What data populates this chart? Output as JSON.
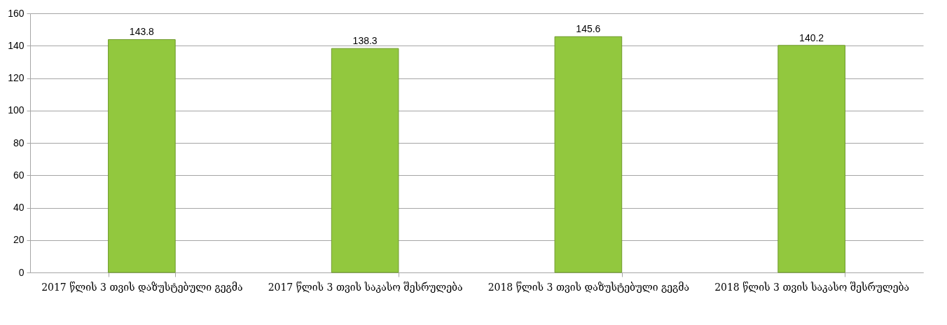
{
  "chart_data": {
    "type": "bar",
    "categories": [
      "2017 წლის 3 თვის\nდაზუსტებული გეგმა",
      "2017 წლის 3 თვის საკასო\nშესრულება",
      "2018 წლის 3 თვის\nდაზუსტებული გეგმა",
      "2018 წლის 3 თვის საკასო\nშესრულება"
    ],
    "values": [
      143.8,
      138.3,
      145.6,
      140.2
    ],
    "color": "#92c83e",
    "ylim": [
      0,
      160
    ],
    "yticks": [
      0,
      20,
      40,
      60,
      80,
      100,
      120,
      140,
      160
    ],
    "grid": "y",
    "data_labels": true
  }
}
